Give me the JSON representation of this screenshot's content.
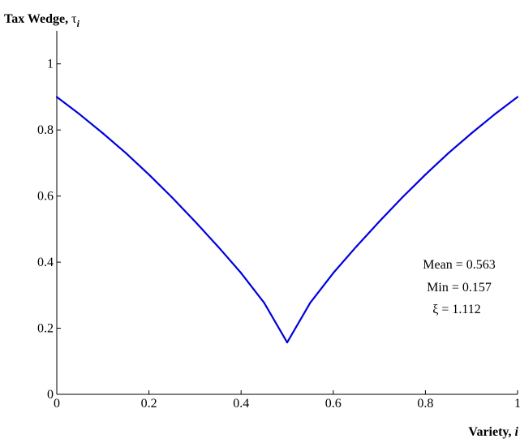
{
  "chart_data": {
    "type": "line",
    "ylabel": {
      "text": "Tax Wedge, ",
      "symbol": "τ",
      "subscript": "i"
    },
    "xlabel": {
      "text": "Variety, ",
      "italic": "i"
    },
    "xlim": [
      0,
      1
    ],
    "ylim": [
      0,
      1.1
    ],
    "xticks": [
      0,
      0.2,
      0.4,
      0.6,
      0.8,
      1
    ],
    "xtick_labels": [
      "0",
      "0.2",
      "0.4",
      "0.6",
      "0.8",
      "1"
    ],
    "yticks": [
      0,
      0.2,
      0.4,
      0.6,
      0.8,
      1
    ],
    "ytick_labels": [
      "0",
      "0.2",
      "0.4",
      "0.6",
      "0.8",
      "1"
    ],
    "grid": false,
    "line_color": "#0000dd",
    "series": [
      {
        "x": [
          0,
          0.05,
          0.1,
          0.15,
          0.2,
          0.25,
          0.3,
          0.35,
          0.4,
          0.45,
          0.5,
          0.55,
          0.6,
          0.65,
          0.7,
          0.75,
          0.8,
          0.85,
          0.9,
          0.95,
          1
        ],
        "values": [
          0.9,
          0.847,
          0.79,
          0.73,
          0.665,
          0.596,
          0.523,
          0.447,
          0.367,
          0.277,
          0.157,
          0.277,
          0.367,
          0.447,
          0.523,
          0.596,
          0.665,
          0.73,
          0.79,
          0.847,
          0.9
        ]
      }
    ],
    "annotations": [
      "Mean = 0.563",
      "Min = 0.157",
      "ξ = 1.112"
    ]
  }
}
